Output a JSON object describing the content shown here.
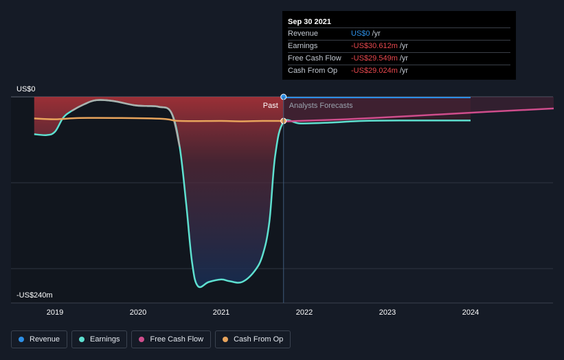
{
  "chart_data": {
    "type": "line",
    "y_axis": {
      "top_label": "US$0",
      "bottom_label": "-US$240m",
      "ylim": [
        -240,
        0
      ],
      "unit": "US$m"
    },
    "x_axis": {
      "tick_labels": [
        "2019",
        "2020",
        "2021",
        "2022",
        "2023",
        "2024"
      ],
      "ticks": [
        2019,
        2020,
        2021,
        2022,
        2023,
        2024
      ],
      "xlim": [
        2018.5,
        2025.0
      ]
    },
    "divider": {
      "x": 2021.75,
      "past_label": "Past",
      "forecast_label": "Analysts Forecasts"
    },
    "grid": true,
    "series": [
      {
        "name": "Revenue",
        "color": "#2d8fe6",
        "points": [
          [
            2021.75,
            0
          ]
        ]
      },
      {
        "name": "Earnings",
        "color": "#5ee0d0",
        "points": [
          [
            2018.75,
            -45
          ],
          [
            2018.9,
            -46
          ],
          [
            2019.0,
            -42
          ],
          [
            2019.1,
            -25
          ],
          [
            2019.2,
            -17
          ],
          [
            2019.35,
            -9
          ],
          [
            2019.5,
            -4
          ],
          [
            2019.7,
            -5
          ],
          [
            2019.95,
            -10
          ],
          [
            2020.1,
            -11
          ],
          [
            2020.25,
            -12
          ],
          [
            2020.4,
            -19
          ],
          [
            2020.5,
            -60
          ],
          [
            2020.58,
            -130
          ],
          [
            2020.65,
            -200
          ],
          [
            2020.72,
            -228
          ],
          [
            2020.85,
            -223
          ],
          [
            2021.0,
            -220
          ],
          [
            2021.1,
            -222
          ],
          [
            2021.25,
            -223
          ],
          [
            2021.4,
            -210
          ],
          [
            2021.5,
            -190
          ],
          [
            2021.58,
            -150
          ],
          [
            2021.65,
            -70
          ],
          [
            2021.75,
            -30.612
          ],
          [
            2021.95,
            -32
          ],
          [
            2022.3,
            -31
          ],
          [
            2022.7,
            -29
          ],
          [
            2023.2,
            -28.5
          ],
          [
            2024.0,
            -28.5
          ]
        ]
      },
      {
        "name": "Free Cash Flow",
        "color": "#cf4d8c",
        "points": [
          [
            2021.75,
            -29.549
          ],
          [
            2022.5,
            -27
          ],
          [
            2023.3,
            -23
          ],
          [
            2024.2,
            -18
          ],
          [
            2025.0,
            -14
          ]
        ]
      },
      {
        "name": "Cash From Op",
        "color": "#e8a45c",
        "points": [
          [
            2018.75,
            -26
          ],
          [
            2019.0,
            -27
          ],
          [
            2019.3,
            -25.5
          ],
          [
            2019.8,
            -25.5
          ],
          [
            2020.3,
            -26.5
          ],
          [
            2020.5,
            -29
          ],
          [
            2021.0,
            -29
          ],
          [
            2021.25,
            -29.5
          ],
          [
            2021.5,
            -29
          ],
          [
            2021.75,
            -29.024
          ]
        ]
      }
    ],
    "highlight_x": 2021.75
  },
  "tooltip": {
    "date": "Sep 30 2021",
    "rows": [
      {
        "name": "Revenue",
        "value": "US$0",
        "unit": "/yr",
        "color": "#2d8fe6"
      },
      {
        "name": "Earnings",
        "value": "-US$30.612m",
        "unit": "/yr",
        "color": "#e8484e"
      },
      {
        "name": "Free Cash Flow",
        "value": "-US$29.549m",
        "unit": "/yr",
        "color": "#e8484e"
      },
      {
        "name": "Cash From Op",
        "value": "-US$29.024m",
        "unit": "/yr",
        "color": "#e8484e"
      }
    ]
  },
  "legend": [
    {
      "label": "Revenue",
      "color": "#2d8fe6"
    },
    {
      "label": "Earnings",
      "color": "#5ee0d0"
    },
    {
      "label": "Free Cash Flow",
      "color": "#cf4d8c"
    },
    {
      "label": "Cash From Op",
      "color": "#e8a45c"
    }
  ]
}
